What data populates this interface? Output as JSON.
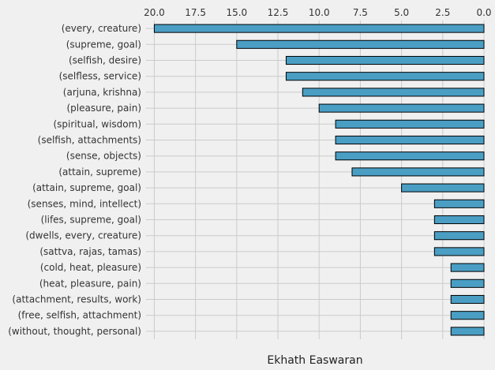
{
  "chart_data": {
    "type": "bar",
    "orientation": "horizontal",
    "x_axis_position": "top",
    "x_axis_inverted": true,
    "xlabel": "Ekhath Easwaran",
    "ylabel": "",
    "title": "",
    "xlim": [
      20.5,
      0
    ],
    "x_ticks": [
      "20.0",
      "17.5",
      "15.0",
      "12.5",
      "10.0",
      "7.5",
      "5.0",
      "2.5",
      "0.0"
    ],
    "grid": true,
    "bar_color": "#4a9ec4",
    "bar_edge_color": "#000000",
    "categories": [
      "(every, creature)",
      "(supreme, goal)",
      "(selfish, desire)",
      "(selfless, service)",
      "(arjuna, krishna)",
      "(pleasure, pain)",
      "(spiritual, wisdom)",
      "(selfish, attachments)",
      "(sense, objects)",
      "(attain, supreme)",
      "(attain, supreme, goal)",
      "(senses, mind, intellect)",
      "(lifes, supreme, goal)",
      "(dwells, every, creature)",
      "(sattva, rajas, tamas)",
      "(cold, heat, pleasure)",
      "(heat, pleasure, pain)",
      "(attachment, results, work)",
      "(free, selfish, attachment)",
      "(without, thought, personal)"
    ],
    "values": [
      20,
      15,
      12,
      12,
      11,
      10,
      9,
      9,
      9,
      8,
      5,
      3,
      3,
      3,
      3,
      2,
      2,
      2,
      2,
      2
    ]
  }
}
